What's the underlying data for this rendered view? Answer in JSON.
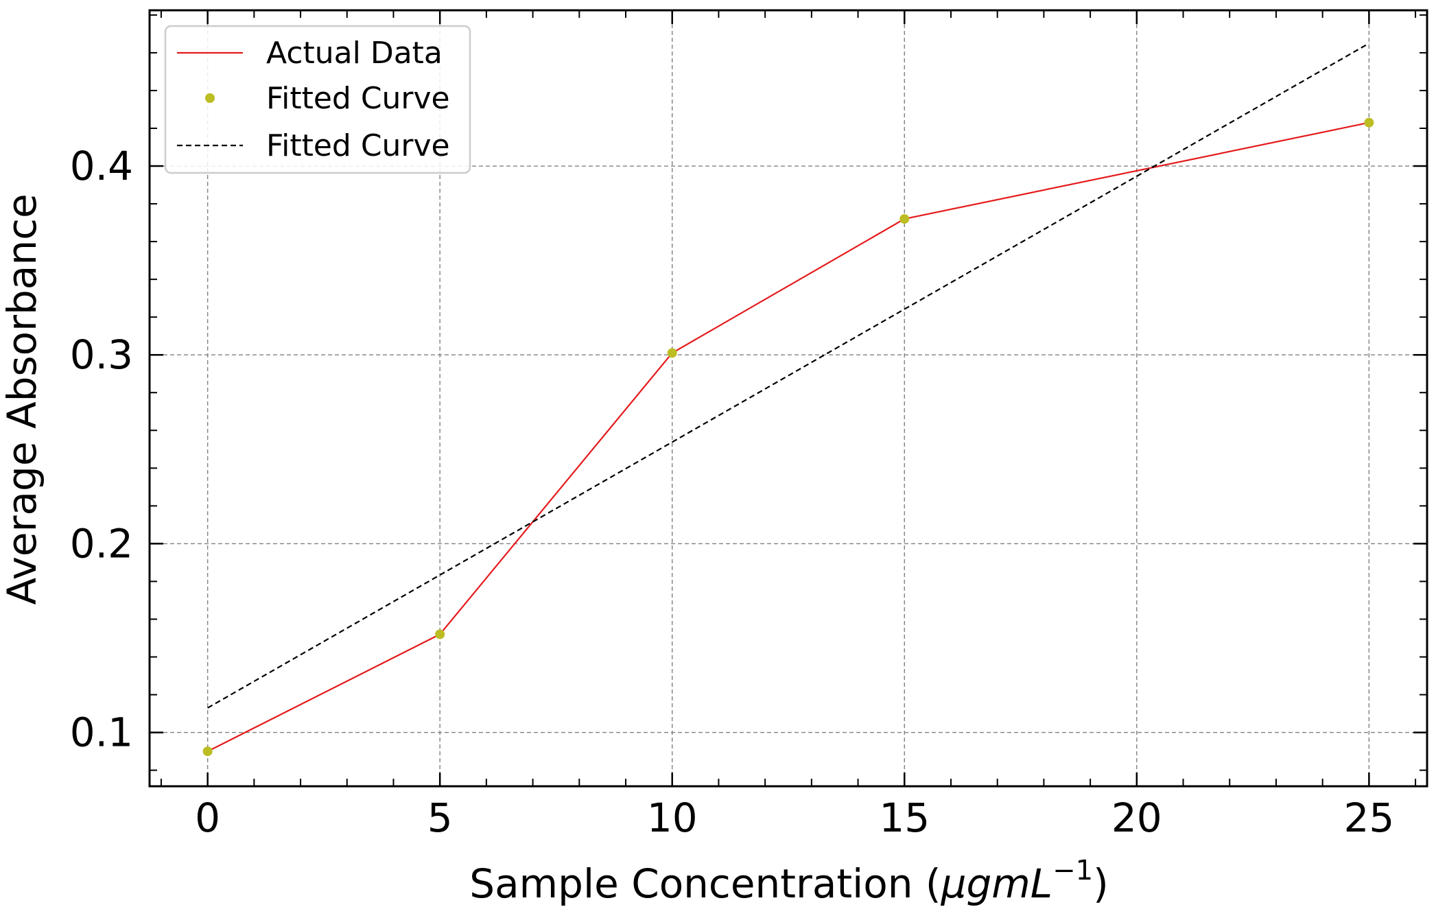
{
  "chart_data": {
    "type": "line",
    "xlabel": "Sample Concentration (",
    "xlabel_math": "μgmL",
    "xlabel_exponent": "−1",
    "xlabel_close": ")",
    "ylabel": "Average Absorbance",
    "xlim": [
      -1.25,
      26.25
    ],
    "ylim": [
      0.0715,
      0.4825
    ],
    "x_ticks": [
      0,
      5,
      10,
      15,
      20,
      25
    ],
    "x_tick_labels": [
      "0",
      "5",
      "10",
      "15",
      "20",
      "25"
    ],
    "y_ticks": [
      0.1,
      0.2,
      0.3,
      0.4
    ],
    "y_tick_labels": [
      "0.1",
      "0.2",
      "0.3",
      "0.4"
    ],
    "x_minor_step": 1,
    "y_minor_step": 0.02,
    "grid": true,
    "legend_position": "top-left",
    "colors": {
      "actual": "#e41a1c",
      "points": "#bcbd22",
      "fit": "#000000",
      "grid": "#808080"
    },
    "series": [
      {
        "name": "Actual Data",
        "style": "solid-line",
        "x": [
          0,
          5,
          10,
          15,
          25
        ],
        "y": [
          0.09,
          0.152,
          0.301,
          0.372,
          0.423
        ]
      },
      {
        "name": "Fitted Curve",
        "style": "markers",
        "x": [
          0,
          5,
          10,
          15,
          25
        ],
        "y": [
          0.09,
          0.152,
          0.301,
          0.372,
          0.423
        ]
      },
      {
        "name": "Fitted Curve",
        "style": "dashed-line",
        "x": [
          0,
          25
        ],
        "y": [
          0.113,
          0.465
        ]
      }
    ]
  }
}
